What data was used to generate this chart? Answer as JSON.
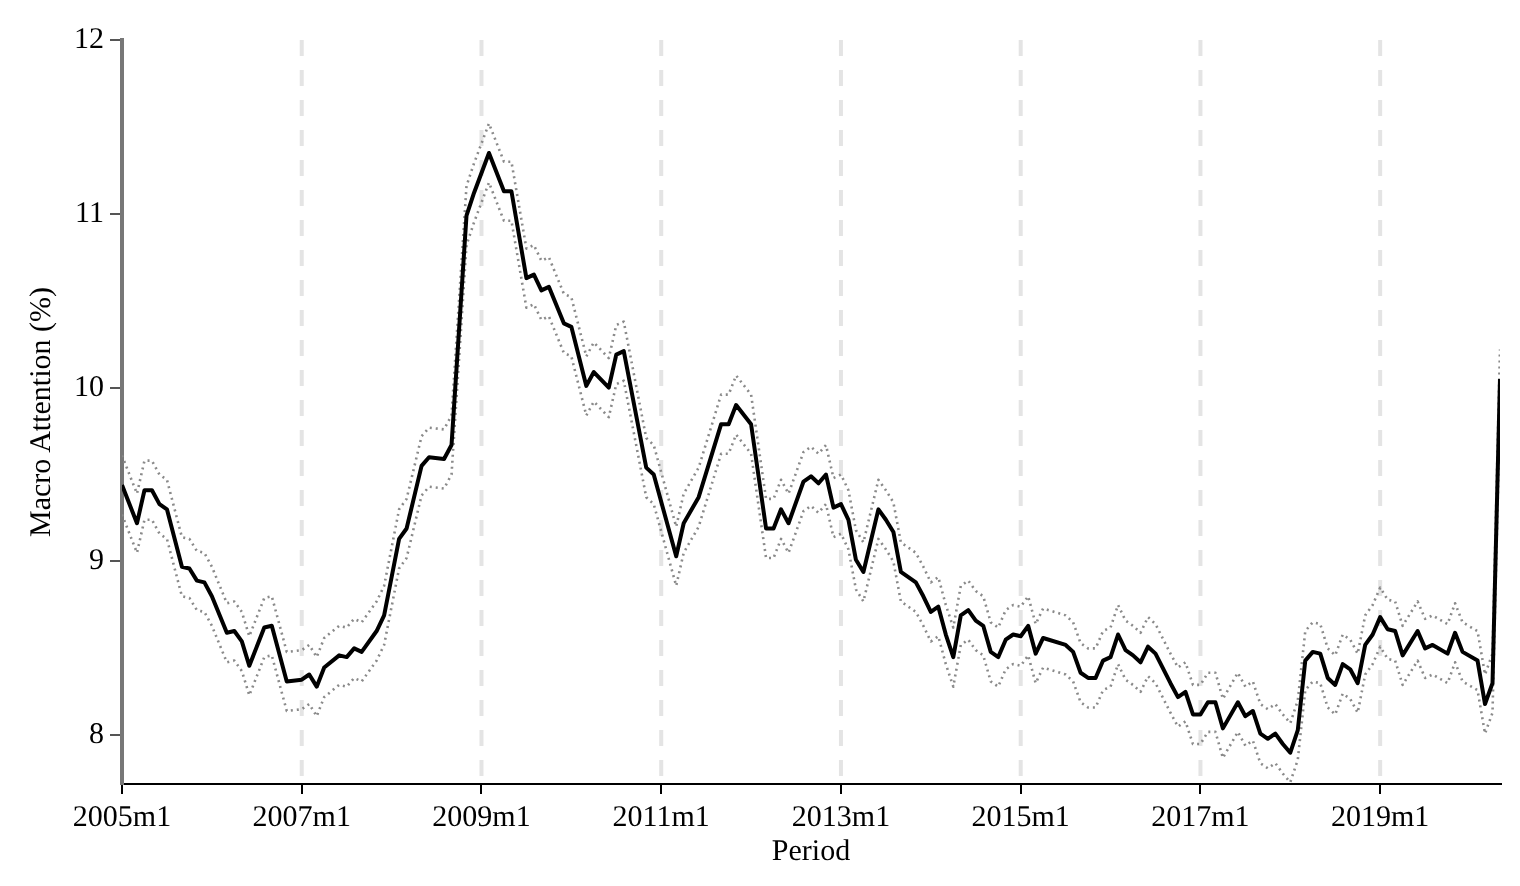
{
  "chart_data": {
    "type": "line",
    "xlabel": "Period",
    "ylabel": "Macro Attention (%)",
    "xlim": [
      "2005-01",
      "2020-05"
    ],
    "xticks": [
      {
        "value": "2005-01",
        "label": "2005m1"
      },
      {
        "value": "2007-01",
        "label": "2007m1"
      },
      {
        "value": "2009-01",
        "label": "2009m1"
      },
      {
        "value": "2011-01",
        "label": "2011m1"
      },
      {
        "value": "2013-01",
        "label": "2013m1"
      },
      {
        "value": "2015-01",
        "label": "2015m1"
      },
      {
        "value": "2017-01",
        "label": "2017m1"
      },
      {
        "value": "2019-01",
        "label": "2019m1"
      }
    ],
    "ylim": [
      7.72,
      12
    ],
    "yticks": [
      8,
      9,
      10,
      11,
      12
    ],
    "grid": "x",
    "legend": false,
    "marker": "none",
    "line_style": "solid",
    "x": [
      "2005-01",
      "2005-03",
      "2005-04",
      "2005-05",
      "2005-06",
      "2005-07",
      "2005-09",
      "2005-10",
      "2005-11",
      "2005-12",
      "2006-01",
      "2006-03",
      "2006-04",
      "2006-05",
      "2006-06",
      "2006-08",
      "2006-09",
      "2006-11",
      "2007-01",
      "2007-02",
      "2007-03",
      "2007-04",
      "2007-06",
      "2007-07",
      "2007-08",
      "2007-09",
      "2007-11",
      "2007-12",
      "2008-02",
      "2008-03",
      "2008-05",
      "2008-06",
      "2008-08",
      "2008-09",
      "2008-11",
      "2008-12",
      "2009-02",
      "2009-04",
      "2009-05",
      "2009-07",
      "2009-08",
      "2009-09",
      "2009-10",
      "2009-12",
      "2010-01",
      "2010-03",
      "2010-04",
      "2010-06",
      "2010-07",
      "2010-08",
      "2010-11",
      "2010-12",
      "2011-03",
      "2011-04",
      "2011-06",
      "2011-09",
      "2011-10",
      "2011-11",
      "2012-01",
      "2012-03",
      "2012-04",
      "2012-05",
      "2012-06",
      "2012-08",
      "2012-09",
      "2012-10",
      "2012-11",
      "2012-12",
      "2013-01",
      "2013-02",
      "2013-03",
      "2013-04",
      "2013-06",
      "2013-07",
      "2013-08",
      "2013-09",
      "2013-11",
      "2013-12",
      "2014-01",
      "2014-02",
      "2014-03",
      "2014-04",
      "2014-05",
      "2014-06",
      "2014-07",
      "2014-08",
      "2014-09",
      "2014-10",
      "2014-11",
      "2014-12",
      "2015-01",
      "2015-02",
      "2015-03",
      "2015-04",
      "2015-07",
      "2015-08",
      "2015-09",
      "2015-10",
      "2015-11",
      "2015-12",
      "2016-01",
      "2016-02",
      "2016-03",
      "2016-04",
      "2016-05",
      "2016-06",
      "2016-07",
      "2016-09",
      "2016-10",
      "2016-11",
      "2016-12",
      "2017-01",
      "2017-02",
      "2017-03",
      "2017-04",
      "2017-06",
      "2017-07",
      "2017-08",
      "2017-09",
      "2017-10",
      "2017-11",
      "2017-12",
      "2018-01",
      "2018-02",
      "2018-03",
      "2018-04",
      "2018-05",
      "2018-06",
      "2018-07",
      "2018-08",
      "2018-09",
      "2018-10",
      "2018-11",
      "2018-12",
      "2019-01",
      "2019-02",
      "2019-03",
      "2019-04",
      "2019-06",
      "2019-07",
      "2019-08",
      "2019-10",
      "2019-11",
      "2019-12",
      "2020-02",
      "2020-03",
      "2020-04",
      "2020-05"
    ],
    "series": [
      {
        "color": "#000000",
        "values": [
          9.44,
          9.22,
          9.41,
          9.41,
          9.33,
          9.3,
          8.97,
          8.96,
          8.89,
          8.88,
          8.8,
          8.59,
          8.6,
          8.54,
          8.4,
          8.62,
          8.63,
          8.31,
          8.32,
          8.35,
          8.28,
          8.39,
          8.46,
          8.45,
          8.5,
          8.48,
          8.6,
          8.69,
          9.13,
          9.19,
          9.55,
          9.6,
          9.59,
          9.67,
          10.99,
          11.12,
          11.35,
          11.13,
          11.13,
          10.63,
          10.65,
          10.56,
          10.58,
          10.37,
          10.35,
          10.01,
          10.09,
          10.0,
          10.19,
          10.21,
          9.54,
          9.5,
          9.03,
          9.22,
          9.37,
          9.79,
          9.79,
          9.9,
          9.79,
          9.19,
          9.19,
          9.3,
          9.22,
          9.46,
          9.49,
          9.45,
          9.5,
          9.31,
          9.33,
          9.24,
          9.01,
          8.94,
          9.3,
          9.24,
          9.17,
          8.94,
          8.88,
          8.8,
          8.71,
          8.74,
          8.58,
          8.45,
          8.69,
          8.72,
          8.66,
          8.63,
          8.48,
          8.45,
          8.55,
          8.58,
          8.57,
          8.63,
          8.47,
          8.56,
          8.52,
          8.48,
          8.36,
          8.33,
          8.33,
          8.43,
          8.45,
          8.58,
          8.49,
          8.46,
          8.42,
          8.51,
          8.47,
          8.3,
          8.22,
          8.25,
          8.12,
          8.12,
          8.19,
          8.19,
          8.04,
          8.19,
          8.11,
          8.14,
          8.01,
          7.98,
          8.01,
          7.95,
          7.9,
          8.03,
          8.43,
          8.48,
          8.47,
          8.33,
          8.29,
          8.41,
          8.38,
          8.3,
          8.52,
          8.58,
          8.68,
          8.61,
          8.6,
          8.46,
          8.6,
          8.5,
          8.52,
          8.47,
          8.59,
          8.48,
          8.43,
          8.18,
          8.3,
          10.05
        ]
      },
      {
        "color": "#8a8a8a",
        "line_style": "dotted",
        "values": [
          9.27,
          9.05,
          9.24,
          9.24,
          9.16,
          9.13,
          8.8,
          8.79,
          8.72,
          8.71,
          8.63,
          8.42,
          8.43,
          8.37,
          8.23,
          8.45,
          8.46,
          8.14,
          8.15,
          8.18,
          8.11,
          8.22,
          8.29,
          8.28,
          8.33,
          8.31,
          8.43,
          8.52,
          8.96,
          9.02,
          9.38,
          9.43,
          9.42,
          9.5,
          10.82,
          10.95,
          11.18,
          10.96,
          10.96,
          10.46,
          10.48,
          10.39,
          10.41,
          10.2,
          10.18,
          9.84,
          9.92,
          9.83,
          10.02,
          10.04,
          9.37,
          9.33,
          8.86,
          9.05,
          9.2,
          9.62,
          9.62,
          9.73,
          9.62,
          9.02,
          9.02,
          9.13,
          9.05,
          9.29,
          9.32,
          9.28,
          9.33,
          9.14,
          9.16,
          9.07,
          8.84,
          8.77,
          9.13,
          9.07,
          9.0,
          8.77,
          8.71,
          8.63,
          8.54,
          8.57,
          8.41,
          8.28,
          8.52,
          8.55,
          8.49,
          8.46,
          8.31,
          8.28,
          8.38,
          8.41,
          8.4,
          8.46,
          8.3,
          8.39,
          8.35,
          8.31,
          8.19,
          8.16,
          8.16,
          8.26,
          8.28,
          8.41,
          8.32,
          8.29,
          8.25,
          8.34,
          8.3,
          8.13,
          8.05,
          8.08,
          7.95,
          7.95,
          8.02,
          8.02,
          7.87,
          8.02,
          7.94,
          7.97,
          7.84,
          7.81,
          7.84,
          7.78,
          7.73,
          7.86,
          8.26,
          8.31,
          8.3,
          8.16,
          8.12,
          8.24,
          8.21,
          8.13,
          8.35,
          8.41,
          8.51,
          8.44,
          8.43,
          8.29,
          8.43,
          8.33,
          8.35,
          8.3,
          8.42,
          8.31,
          8.26,
          8.01,
          8.13,
          9.88
        ]
      },
      {
        "color": "#8a8a8a",
        "line_style": "dotted",
        "values": [
          9.61,
          9.39,
          9.58,
          9.58,
          9.5,
          9.47,
          9.14,
          9.13,
          9.06,
          9.05,
          8.97,
          8.76,
          8.77,
          8.71,
          8.57,
          8.79,
          8.8,
          8.48,
          8.49,
          8.52,
          8.45,
          8.56,
          8.63,
          8.62,
          8.67,
          8.65,
          8.77,
          8.86,
          9.3,
          9.36,
          9.72,
          9.77,
          9.76,
          9.84,
          11.16,
          11.29,
          11.52,
          11.3,
          11.3,
          10.8,
          10.82,
          10.73,
          10.75,
          10.54,
          10.52,
          10.18,
          10.26,
          10.17,
          10.36,
          10.38,
          9.71,
          9.67,
          9.2,
          9.39,
          9.54,
          9.96,
          9.96,
          10.07,
          9.96,
          9.36,
          9.36,
          9.47,
          9.39,
          9.63,
          9.66,
          9.62,
          9.67,
          9.48,
          9.5,
          9.41,
          9.18,
          9.11,
          9.47,
          9.41,
          9.34,
          9.11,
          9.05,
          8.97,
          8.88,
          8.91,
          8.75,
          8.62,
          8.86,
          8.89,
          8.83,
          8.8,
          8.65,
          8.62,
          8.72,
          8.75,
          8.74,
          8.8,
          8.64,
          8.73,
          8.69,
          8.65,
          8.53,
          8.5,
          8.5,
          8.6,
          8.62,
          8.75,
          8.66,
          8.63,
          8.59,
          8.68,
          8.64,
          8.47,
          8.39,
          8.42,
          8.29,
          8.29,
          8.36,
          8.36,
          8.21,
          8.36,
          8.28,
          8.31,
          8.18,
          8.15,
          8.18,
          8.12,
          8.07,
          8.2,
          8.6,
          8.65,
          8.64,
          8.5,
          8.46,
          8.58,
          8.55,
          8.47,
          8.69,
          8.75,
          8.85,
          8.78,
          8.77,
          8.63,
          8.77,
          8.67,
          8.69,
          8.64,
          8.76,
          8.65,
          8.6,
          8.35,
          8.47,
          10.22
        ]
      }
    ]
  }
}
